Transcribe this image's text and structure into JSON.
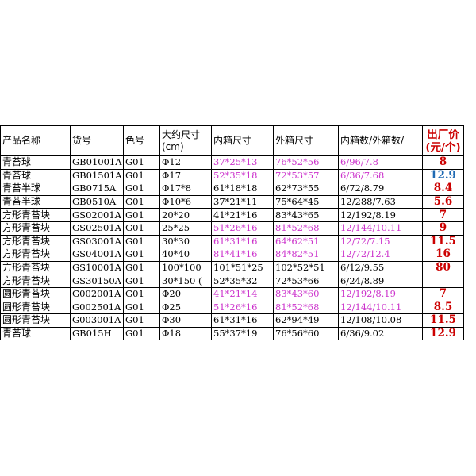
{
  "header": {
    "name": "产品名称",
    "code": "货号",
    "color": "色号",
    "approx_size_line1": "大约尺寸",
    "approx_size_line2": "(cm)",
    "inner_box": "内箱尺寸",
    "outer_box": "外箱尺寸",
    "pack": "内箱数/外箱数/",
    "price_line1": "出厂价",
    "price_line2": "(元/个)"
  },
  "colors": {
    "magenta": "#cc33cc",
    "red": "#cc0000",
    "blue": "#1f6ab3"
  },
  "rows": [
    {
      "name": "青苔球",
      "code": "GB01001A",
      "color": "G01",
      "size": "Φ12",
      "inner": "37*25*13",
      "outer": "76*52*56",
      "pack": "6/96/7.8",
      "price": "8",
      "inner_style": "magenta",
      "price_style": "red"
    },
    {
      "name": "青苔球",
      "code": "GB01501A",
      "color": "G01",
      "size": "Φ17",
      "inner": "52*35*18",
      "outer": "72*53*57",
      "pack": "6/36/7.68",
      "price": "12.9",
      "inner_style": "magenta",
      "price_style": "blue"
    },
    {
      "name": "青苔半球",
      "code": "GB0715A",
      "color": "G01",
      "size": "Φ17*8",
      "inner": "61*18*18",
      "outer": "62*73*55",
      "pack": "6/72/8.79",
      "price": "8.4",
      "inner_style": "black",
      "price_style": "red"
    },
    {
      "name": "青苔半球",
      "code": "GB0510A",
      "color": "G01",
      "size": "Φ10*6",
      "inner": "37*21*11",
      "outer": "75*64*45",
      "pack": "12/288/7.63",
      "price": "5.6",
      "inner_style": "black",
      "price_style": "red"
    },
    {
      "name": "方形青苔块",
      "code": "GS02001A",
      "color": "G01",
      "size": "20*20",
      "inner": "41*21*16",
      "outer": "83*43*65",
      "pack": "12/192/8.19",
      "price": "7",
      "inner_style": "black",
      "price_style": "red"
    },
    {
      "name": "方形青苔块",
      "code": "GS02501A",
      "color": "G01",
      "size": "25*25",
      "inner": "51*26*16",
      "outer": "81*52*68",
      "pack": "12/144/10.11",
      "price": "9",
      "inner_style": "magenta",
      "price_style": "red"
    },
    {
      "name": "方形青苔块",
      "code": "GS03001A",
      "color": "G01",
      "size": "30*30",
      "inner": "61*31*16",
      "outer": "64*62*51",
      "pack": "12/72/7.15",
      "price": "11.5",
      "inner_style": "magenta",
      "price_style": "red"
    },
    {
      "name": "方形青苔块",
      "code": "GS04001A",
      "color": "G01",
      "size": "40*40",
      "inner": "81*41*16",
      "outer": "84*82*51",
      "pack": "12/72/12.4",
      "price": "16",
      "inner_style": "magenta",
      "price_style": "red"
    },
    {
      "name": "方形青苔块",
      "code": "GS10001A",
      "color": "G01",
      "size": "100*100",
      "inner": "101*51*25",
      "outer": "102*52*51",
      "pack": "6/12/9.55",
      "price": "80",
      "inner_style": "black",
      "price_style": "red"
    },
    {
      "name": "方形青苔块",
      "code": "GS30150A",
      "color": "G01",
      "size": "30*150 (",
      "inner": "52*35*32",
      "outer": "72*53*66",
      "pack": "6/24/8.89",
      "price": "",
      "inner_style": "black",
      "price_style": "red"
    },
    {
      "name": "圆形青苔块",
      "code": "G002001A",
      "color": "G01",
      "size": "Φ20",
      "inner": "41*21*14",
      "outer": "83*43*60",
      "pack": "12/192/8.19",
      "price": "7",
      "inner_style": "magenta",
      "price_style": "red"
    },
    {
      "name": "圆形青苔块",
      "code": "G002501A",
      "color": "G01",
      "size": "Φ25",
      "inner": "51*26*16",
      "outer": "81*52*68",
      "pack": "12/144/10.11",
      "price": "8.5",
      "inner_style": "magenta",
      "price_style": "red"
    },
    {
      "name": "圆形青苔块",
      "code": "G003001A",
      "color": "G01",
      "size": "Φ30",
      "inner": "61*31*16",
      "outer": "62*94*49",
      "pack": "12/108/10.08",
      "price": "11.5",
      "inner_style": "black",
      "price_style": "red"
    },
    {
      "name": "青苔球",
      "code": "GB015H",
      "color": "G01",
      "size": "Φ18",
      "inner": "55*37*19",
      "outer": "76*56*60",
      "pack": "6/36/9.02",
      "price": "12.9",
      "inner_style": "black",
      "price_style": "red"
    }
  ]
}
